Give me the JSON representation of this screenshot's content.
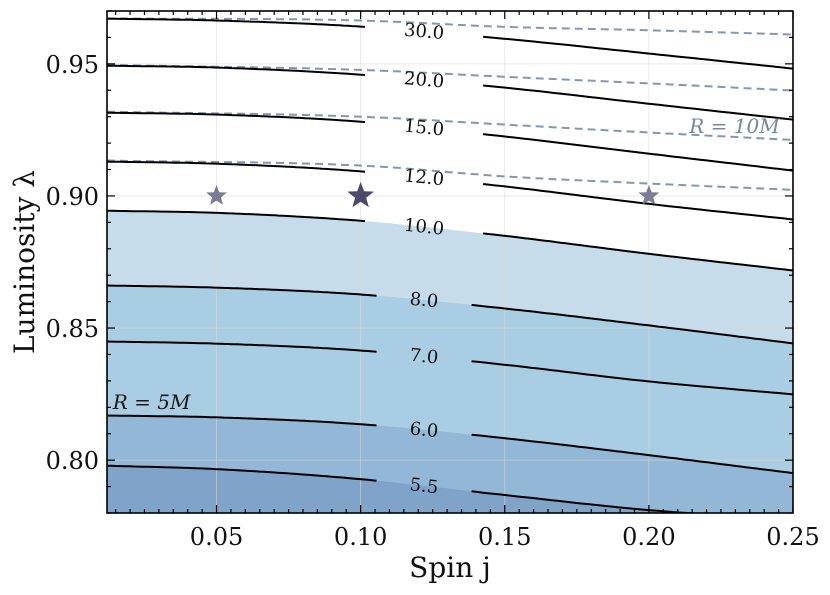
{
  "chart_data": {
    "type": "contour",
    "xlabel": "Spin j",
    "ylabel": "Luminosity λ",
    "xlim": [
      0.012,
      0.25
    ],
    "ylim": [
      0.78,
      0.97
    ],
    "xticks": [
      0.05,
      0.1,
      0.15,
      0.2,
      0.25
    ],
    "xtick_labels": [
      "0.05",
      "0.10",
      "0.15",
      "0.20",
      "0.25"
    ],
    "yticks": [
      0.8,
      0.85,
      0.9,
      0.95
    ],
    "ytick_labels": [
      "0.80",
      "0.85",
      "0.90",
      "0.95"
    ],
    "grid": true,
    "filled_bands": [
      {
        "range": "below 5.5",
        "color": "#7fa3c9"
      },
      {
        "range": "5.5-6.0",
        "color": "#93b7d7"
      },
      {
        "range": "6.0-7.0",
        "color": "#a9cde3"
      },
      {
        "range": "7.0-8.0",
        "color": "#c6dcea"
      },
      {
        "range": "8.0-10.0",
        "color": "#e6eff7"
      },
      {
        "range": "above 10.0",
        "color": "#ffffff"
      }
    ],
    "contours": [
      {
        "label": "5.5",
        "points": [
          [
            0.012,
            0.7979
          ],
          [
            0.05,
            0.7966
          ],
          [
            0.1,
            0.7928
          ],
          [
            0.15,
            0.7868
          ],
          [
            0.2,
            0.7811
          ],
          [
            0.25,
            0.7775
          ]
        ],
        "label_x": 0.122
      },
      {
        "label": "6.0",
        "points": [
          [
            0.012,
            0.8169
          ],
          [
            0.05,
            0.8162
          ],
          [
            0.1,
            0.8136
          ],
          [
            0.15,
            0.8083
          ],
          [
            0.2,
            0.8019
          ],
          [
            0.25,
            0.7951
          ]
        ],
        "label_x": 0.122
      },
      {
        "label": "7.0",
        "points": [
          [
            0.012,
            0.8449
          ],
          [
            0.05,
            0.8441
          ],
          [
            0.1,
            0.8415
          ],
          [
            0.15,
            0.8361
          ],
          [
            0.2,
            0.8298
          ],
          [
            0.25,
            0.8249
          ]
        ],
        "label_x": 0.122
      },
      {
        "label": "8.0",
        "points": [
          [
            0.012,
            0.8661
          ],
          [
            0.05,
            0.8653
          ],
          [
            0.1,
            0.8627
          ],
          [
            0.15,
            0.8574
          ],
          [
            0.2,
            0.851
          ],
          [
            0.25,
            0.8442
          ]
        ],
        "label_x": 0.122
      },
      {
        "label": "10.0",
        "points": [
          [
            0.012,
            0.8944
          ],
          [
            0.05,
            0.8936
          ],
          [
            0.1,
            0.8906
          ],
          [
            0.15,
            0.8849
          ],
          [
            0.2,
            0.8781
          ],
          [
            0.25,
            0.8718
          ]
        ],
        "label_x": 0.122
      },
      {
        "label": "12.0",
        "points": [
          [
            0.012,
            0.913
          ],
          [
            0.05,
            0.9122
          ],
          [
            0.1,
            0.9093
          ],
          [
            0.15,
            0.9036
          ],
          [
            0.2,
            0.897
          ],
          [
            0.25,
            0.8911
          ]
        ],
        "label_x": 0.122
      },
      {
        "label": "15.0",
        "points": [
          [
            0.012,
            0.9315
          ],
          [
            0.05,
            0.9308
          ],
          [
            0.1,
            0.9281
          ],
          [
            0.15,
            0.9225
          ],
          [
            0.2,
            0.916
          ],
          [
            0.25,
            0.9096
          ]
        ],
        "label_x": 0.122
      },
      {
        "label": "20.0",
        "points": [
          [
            0.012,
            0.9493
          ],
          [
            0.05,
            0.9486
          ],
          [
            0.1,
            0.9459
          ],
          [
            0.15,
            0.941
          ],
          [
            0.2,
            0.9349
          ],
          [
            0.25,
            0.9289
          ]
        ],
        "label_x": 0.122
      },
      {
        "label": "30.0",
        "points": [
          [
            0.012,
            0.9671
          ],
          [
            0.05,
            0.9664
          ],
          [
            0.1,
            0.9641
          ],
          [
            0.15,
            0.9595
          ],
          [
            0.2,
            0.9539
          ],
          [
            0.25,
            0.9482
          ]
        ],
        "label_x": 0.122
      }
    ],
    "dashed_lines": [
      {
        "name": "R=10M",
        "points": [
          [
            0.012,
            0.9134
          ],
          [
            0.1,
            0.9115
          ],
          [
            0.15,
            0.9074
          ],
          [
            0.2,
            0.9047
          ],
          [
            0.25,
            0.9023
          ]
        ]
      },
      {
        "name": "R=10M",
        "points": [
          [
            0.012,
            0.9319
          ],
          [
            0.1,
            0.93
          ],
          [
            0.15,
            0.927
          ],
          [
            0.2,
            0.924
          ],
          [
            0.25,
            0.9212
          ]
        ]
      },
      {
        "name": "R=10M",
        "points": [
          [
            0.012,
            0.9496
          ],
          [
            0.1,
            0.9477
          ],
          [
            0.15,
            0.9451
          ],
          [
            0.2,
            0.9426
          ],
          [
            0.25,
            0.9399
          ]
        ]
      },
      {
        "name": "R=10M",
        "points": [
          [
            0.012,
            0.9672
          ],
          [
            0.1,
            0.9664
          ],
          [
            0.15,
            0.964
          ],
          [
            0.2,
            0.9627
          ],
          [
            0.25,
            0.9611
          ]
        ]
      }
    ],
    "markers": [
      {
        "x": 0.05,
        "y": 0.9,
        "size": "small"
      },
      {
        "x": 0.1,
        "y": 0.9,
        "size": "large"
      },
      {
        "x": 0.2,
        "y": 0.9,
        "size": "small"
      }
    ],
    "annotations": [
      {
        "text": "R = 5M",
        "x": 0.014,
        "y": 0.822,
        "color": "#1a1a1a"
      },
      {
        "text": "R = 10M",
        "x": 0.214,
        "y": 0.9265,
        "color": "#7389a3"
      }
    ],
    "colors": {
      "contour": "#000000",
      "dashed": "#7f98b3",
      "marker_small": "#6e6f8a",
      "marker_large": "#4a4a6a"
    }
  }
}
